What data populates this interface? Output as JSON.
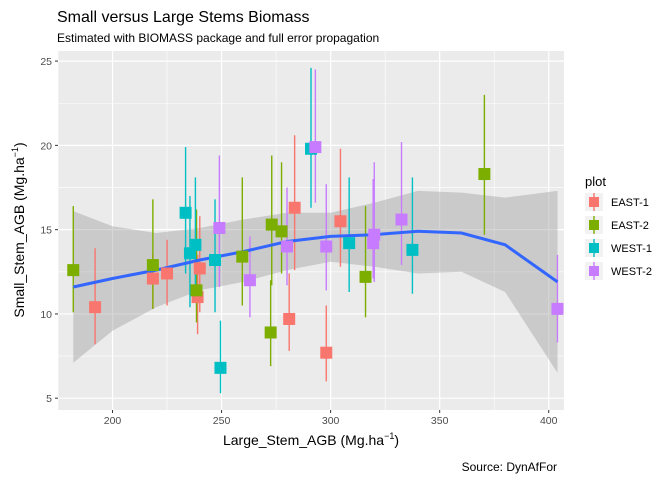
{
  "chart_data": {
    "type": "scatter",
    "title": "Small versus Large Stems Biomass",
    "subtitle": "Estimated with BIOMASS package and full error propagation",
    "caption": "Source: DynAfFor",
    "xlabel": "Large_Stem_AGB",
    "xlabel_unit": "Mg.ha",
    "xlabel_sup": "−1",
    "ylabel": "Small_Stem_AGB",
    "ylabel_unit": "Mg.ha",
    "ylabel_sup": "−1",
    "xlim": [
      175,
      407
    ],
    "ylim": [
      4.3,
      25.6
    ],
    "x_ticks": [
      200,
      250,
      300,
      350,
      400
    ],
    "y_ticks": [
      5,
      10,
      15,
      20,
      25
    ],
    "grid": true,
    "legend_title": "plot",
    "legend_position": "right",
    "series": [
      {
        "name": "EAST-1",
        "color": "#F8766D",
        "points": [
          {
            "x": 192,
            "y": 10.4,
            "ymin": 8.2,
            "ymax": 13.9
          },
          {
            "x": 218.5,
            "y": 12.1,
            "ymin": 10.3,
            "ymax": 13.6
          },
          {
            "x": 225,
            "y": 12.4,
            "ymin": 10.5,
            "ymax": 14.4
          },
          {
            "x": 239,
            "y": 11.0,
            "ymin": 8.8,
            "ymax": 13.5
          },
          {
            "x": 240,
            "y": 12.7,
            "ymin": 10.1,
            "ymax": 15.8
          },
          {
            "x": 281,
            "y": 9.7,
            "ymin": 7.8,
            "ymax": 12.4
          },
          {
            "x": 283.5,
            "y": 16.3,
            "ymin": 12.6,
            "ymax": 20.6
          },
          {
            "x": 298,
            "y": 7.7,
            "ymin": 6.0,
            "ymax": 10.5
          },
          {
            "x": 304.5,
            "y": 15.5,
            "ymin": 12.8,
            "ymax": 19.8
          }
        ]
      },
      {
        "name": "EAST-2",
        "color": "#7CAE00",
        "points": [
          {
            "x": 182,
            "y": 12.6,
            "ymin": 10.1,
            "ymax": 16.4
          },
          {
            "x": 218.5,
            "y": 12.9,
            "ymin": 10.3,
            "ymax": 16.8
          },
          {
            "x": 238.5,
            "y": 11.4,
            "ymin": 9.5,
            "ymax": 16.2
          },
          {
            "x": 259.5,
            "y": 13.4,
            "ymin": 10.5,
            "ymax": 18.1
          },
          {
            "x": 272.5,
            "y": 8.9,
            "ymin": 6.9,
            "ymax": 12.0
          },
          {
            "x": 273,
            "y": 15.3,
            "ymin": 11.7,
            "ymax": 19.4
          },
          {
            "x": 277.5,
            "y": 14.9,
            "ymin": 12.4,
            "ymax": 19.0
          },
          {
            "x": 316,
            "y": 12.2,
            "ymin": 9.8,
            "ymax": 16.4
          },
          {
            "x": 370.5,
            "y": 18.3,
            "ymin": 14.7,
            "ymax": 23.0
          }
        ]
      },
      {
        "name": "WEST-1",
        "color": "#00BFC4",
        "points": [
          {
            "x": 233.5,
            "y": 16.0,
            "ymin": 12.4,
            "ymax": 19.9
          },
          {
            "x": 235.5,
            "y": 13.6,
            "ymin": 10.4,
            "ymax": 17.0
          },
          {
            "x": 238,
            "y": 14.1,
            "ymin": 11.1,
            "ymax": 18.1
          },
          {
            "x": 247,
            "y": 13.2,
            "ymin": 10.1,
            "ymax": 16.8
          },
          {
            "x": 249.5,
            "y": 6.8,
            "ymin": 5.3,
            "ymax": 9.6
          },
          {
            "x": 291,
            "y": 19.8,
            "ymin": 16.3,
            "ymax": 24.6
          },
          {
            "x": 308.5,
            "y": 14.2,
            "ymin": 11.3,
            "ymax": 18.1
          },
          {
            "x": 337.5,
            "y": 13.8,
            "ymin": 11.2,
            "ymax": 18.1
          }
        ]
      },
      {
        "name": "WEST-2",
        "color": "#C77CFF",
        "points": [
          {
            "x": 249,
            "y": 15.1,
            "ymin": 11.6,
            "ymax": 19.4
          },
          {
            "x": 263,
            "y": 12.0,
            "ymin": 9.8,
            "ymax": 14.6
          },
          {
            "x": 280,
            "y": 14.0,
            "ymin": 11.7,
            "ymax": 17.5
          },
          {
            "x": 293,
            "y": 19.9,
            "ymin": 16.6,
            "ymax": 24.5
          },
          {
            "x": 298,
            "y": 14.0,
            "ymin": 11.4,
            "ymax": 17.7
          },
          {
            "x": 319.5,
            "y": 14.2,
            "ymin": 12.1,
            "ymax": 18.0
          },
          {
            "x": 320,
            "y": 14.7,
            "ymin": 11.9,
            "ymax": 19.0
          },
          {
            "x": 332.5,
            "y": 15.6,
            "ymin": 12.9,
            "ymax": 20.2
          },
          {
            "x": 404,
            "y": 10.3,
            "ymin": 8.3,
            "ymax": 13.5
          }
        ]
      }
    ],
    "smooth": {
      "color": "#3366FF",
      "ribbon_color": "#999999",
      "points": [
        {
          "x": 182,
          "y": 11.6,
          "ymin": 7.1,
          "ymax": 16.1
        },
        {
          "x": 200,
          "y": 12.1,
          "ymin": 9.0,
          "ymax": 15.2
        },
        {
          "x": 220,
          "y": 12.6,
          "ymin": 10.4,
          "ymax": 14.8
        },
        {
          "x": 240,
          "y": 13.2,
          "ymin": 11.4,
          "ymax": 15.1
        },
        {
          "x": 260,
          "y": 13.7,
          "ymin": 11.9,
          "ymax": 15.6
        },
        {
          "x": 280,
          "y": 14.3,
          "ymin": 12.6,
          "ymax": 16.0
        },
        {
          "x": 300,
          "y": 14.6,
          "ymin": 13.1,
          "ymax": 16.0
        },
        {
          "x": 320,
          "y": 14.7,
          "ymin": 12.8,
          "ymax": 16.6
        },
        {
          "x": 340,
          "y": 14.9,
          "ymin": 12.4,
          "ymax": 17.3
        },
        {
          "x": 360,
          "y": 14.8,
          "ymin": 12.5,
          "ymax": 17.2
        },
        {
          "x": 380,
          "y": 14.1,
          "ymin": 11.3,
          "ymax": 16.9
        },
        {
          "x": 404,
          "y": 11.9,
          "ymin": 6.5,
          "ymax": 17.3
        }
      ]
    }
  }
}
